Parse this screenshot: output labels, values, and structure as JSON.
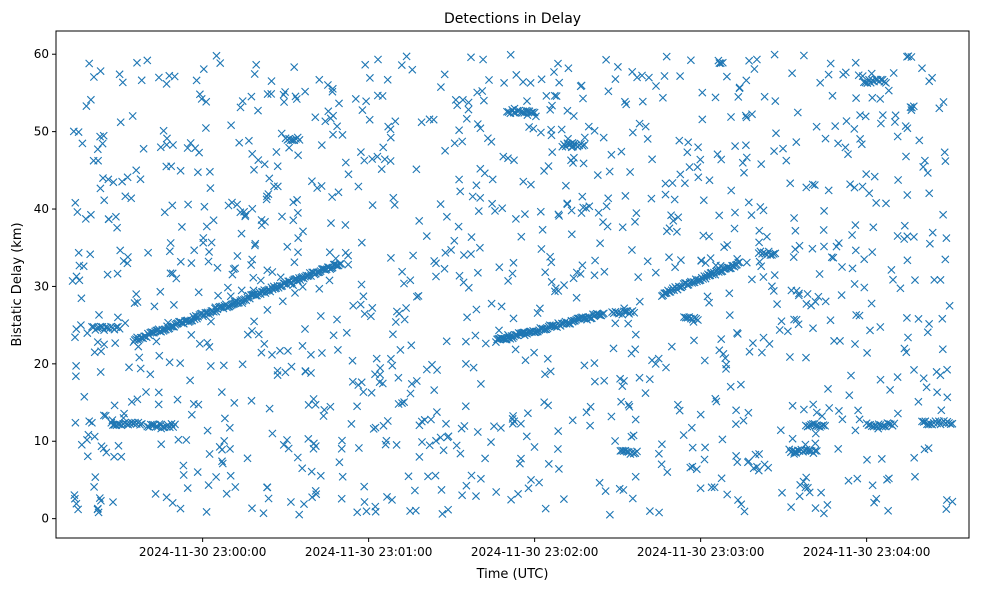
{
  "chart_data": {
    "type": "scatter",
    "title": "Detections in Delay",
    "xlabel": "Time (UTC)",
    "ylabel": "Bistatic Delay (km)",
    "marker": "x",
    "color": "#1f77b4",
    "grid": false,
    "x_range": [
      "2024-11-30 22:59:07",
      "2024-11-30 23:04:37"
    ],
    "ylim": [
      -2.5,
      63
    ],
    "x_ticks": [
      {
        "value": "2024-11-30 23:00:00",
        "label": "2024-11-30 23:00:00"
      },
      {
        "value": "2024-11-30 23:01:00",
        "label": "2024-11-30 23:01:00"
      },
      {
        "value": "2024-11-30 23:02:00",
        "label": "2024-11-30 23:02:00"
      },
      {
        "value": "2024-11-30 23:03:00",
        "label": "2024-11-30 23:03:00"
      },
      {
        "value": "2024-11-30 23:04:00",
        "label": "2024-11-30 23:04:00"
      }
    ],
    "y_ticks": [
      0,
      10,
      20,
      30,
      40,
      50,
      60
    ],
    "start_time": "2024-11-30 22:59:13",
    "end_time": "2024-11-30 23:04:31",
    "tracks": [
      {
        "from": [
          "2024-11-30 22:59:35",
          23.0
        ],
        "to": [
          "2024-11-30 23:00:50",
          33.0
        ]
      },
      {
        "from": [
          "2024-11-30 23:01:46",
          23.0
        ],
        "to": [
          "2024-11-30 23:02:25",
          26.5
        ]
      },
      {
        "from": [
          "2024-11-30 23:02:46",
          29.0
        ],
        "to": [
          "2024-11-30 23:03:14",
          33.0
        ]
      }
    ],
    "clusters": [
      {
        "from": "2024-11-30 22:59:20",
        "to": "2024-11-30 22:59:30",
        "y": 24.6
      },
      {
        "from": "2024-11-30 22:59:27",
        "to": "2024-11-30 22:59:38",
        "y": 12.2
      },
      {
        "from": "2024-11-30 22:59:40",
        "to": "2024-11-30 22:59:50",
        "y": 12.0
      },
      {
        "from": "2024-11-30 23:00:30",
        "to": "2024-11-30 23:00:35",
        "y": 49.0
      },
      {
        "from": "2024-11-30 23:01:50",
        "to": "2024-11-30 23:02:00",
        "y": 52.6
      },
      {
        "from": "2024-11-30 23:02:10",
        "to": "2024-11-30 23:02:18",
        "y": 48.3
      },
      {
        "from": "2024-11-30 23:02:28",
        "to": "2024-11-30 23:02:36",
        "y": 26.6
      },
      {
        "from": "2024-11-30 23:02:31",
        "to": "2024-11-30 23:02:37",
        "y": 8.6
      },
      {
        "from": "2024-11-30 23:02:54",
        "to": "2024-11-30 23:02:59",
        "y": 25.8
      },
      {
        "from": "2024-11-30 23:03:21",
        "to": "2024-11-30 23:03:27",
        "y": 34.3
      },
      {
        "from": "2024-11-30 23:03:32",
        "to": "2024-11-30 23:03:42",
        "y": 8.7
      },
      {
        "from": "2024-11-30 23:03:38",
        "to": "2024-11-30 23:03:45",
        "y": 12.0
      },
      {
        "from": "2024-11-30 23:03:59",
        "to": "2024-11-30 23:04:07",
        "y": 56.5
      },
      {
        "from": "2024-11-30 23:04:00",
        "to": "2024-11-30 23:04:10",
        "y": 12.1
      },
      {
        "from": "2024-11-30 23:04:20",
        "to": "2024-11-30 23:04:31",
        "y": 12.4
      }
    ],
    "scatter_sample": [
      [
        "2024-11-30 22:59:13",
        30.7
      ],
      [
        "2024-11-30 22:59:14",
        12.4
      ],
      [
        "2024-11-30 22:59:15",
        1.2
      ],
      [
        "2024-11-30 22:59:16",
        25.0
      ],
      [
        "2024-11-30 22:59:17",
        32.6
      ],
      [
        "2024-11-30 22:59:18",
        53.3
      ],
      [
        "2024-11-30 22:59:19",
        58.8
      ],
      [
        "2024-11-30 22:59:21",
        10.6
      ],
      [
        "2024-11-30 22:59:22",
        1.2
      ],
      [
        "2024-11-30 22:59:24",
        44.0
      ],
      [
        "2024-11-30 22:59:26",
        38.7
      ],
      [
        "2024-11-30 22:59:28",
        8.0
      ],
      [
        "2024-11-30 22:59:30",
        57.4
      ],
      [
        "2024-11-30 22:59:33",
        33.8
      ],
      [
        "2024-11-30 22:59:36",
        45.0
      ],
      [
        "2024-11-30 22:59:40",
        59.2
      ],
      [
        "2024-11-30 22:59:43",
        3.2
      ],
      [
        "2024-11-30 22:59:47",
        48.3
      ],
      [
        "2024-11-30 22:59:52",
        1.3
      ],
      [
        "2024-11-30 23:00:05",
        59.8
      ],
      [
        "2024-11-30 23:00:22",
        0.7
      ],
      [
        "2024-11-30 23:01:12",
        58.6
      ],
      [
        "2024-11-30 23:01:37",
        59.6
      ],
      [
        "2024-11-30 23:02:04",
        1.3
      ],
      [
        "2024-11-30 23:02:45",
        0.8
      ],
      [
        "2024-11-30 23:03:08",
        58.9
      ],
      [
        "2024-11-30 23:03:47",
        58.8
      ],
      [
        "2024-11-30 23:04:20",
        58.2
      ],
      [
        "2024-11-30 23:04:30",
        27.5
      ],
      [
        "2024-11-30 23:04:31",
        2.2
      ]
    ]
  }
}
